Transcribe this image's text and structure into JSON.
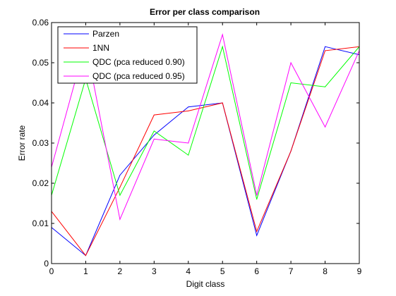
{
  "chart_data": {
    "type": "line",
    "title": "Error per class comparison",
    "xlabel": "Digit class",
    "ylabel": "Error rate",
    "x": [
      0,
      1,
      2,
      3,
      4,
      5,
      6,
      7,
      8,
      9
    ],
    "xlim": [
      0,
      9
    ],
    "ylim": [
      0,
      0.06
    ],
    "xticks": [
      "0",
      "1",
      "2",
      "3",
      "4",
      "5",
      "6",
      "7",
      "8",
      "9"
    ],
    "yticks": [
      0,
      0.01,
      0.02,
      0.03,
      0.04,
      0.05,
      0.06
    ],
    "ytick_labels": [
      "0",
      "0.01",
      "0.02",
      "0.03",
      "0.04",
      "0.05",
      "0.06"
    ],
    "grid": false,
    "legend_position": "top-left",
    "series": [
      {
        "name": "Parzen",
        "color": "#0000ff",
        "values": [
          0.009,
          0.002,
          0.022,
          0.032,
          0.039,
          0.04,
          0.007,
          0.028,
          0.054,
          0.052
        ]
      },
      {
        "name": "1NN",
        "color": "#ff0000",
        "values": [
          0.013,
          0.002,
          0.019,
          0.037,
          0.038,
          0.04,
          0.008,
          0.028,
          0.053,
          0.054
        ]
      },
      {
        "name": "QDC (pca reduced 0.90)",
        "color": "#00ff00",
        "values": [
          0.017,
          0.046,
          0.017,
          0.033,
          0.027,
          0.054,
          0.016,
          0.045,
          0.044,
          0.054
        ]
      },
      {
        "name": "QDC (pca reduced 0.95)",
        "color": "#ff00ff",
        "values": [
          0.024,
          0.055,
          0.011,
          0.031,
          0.03,
          0.057,
          0.017,
          0.05,
          0.034,
          0.053
        ]
      }
    ]
  }
}
